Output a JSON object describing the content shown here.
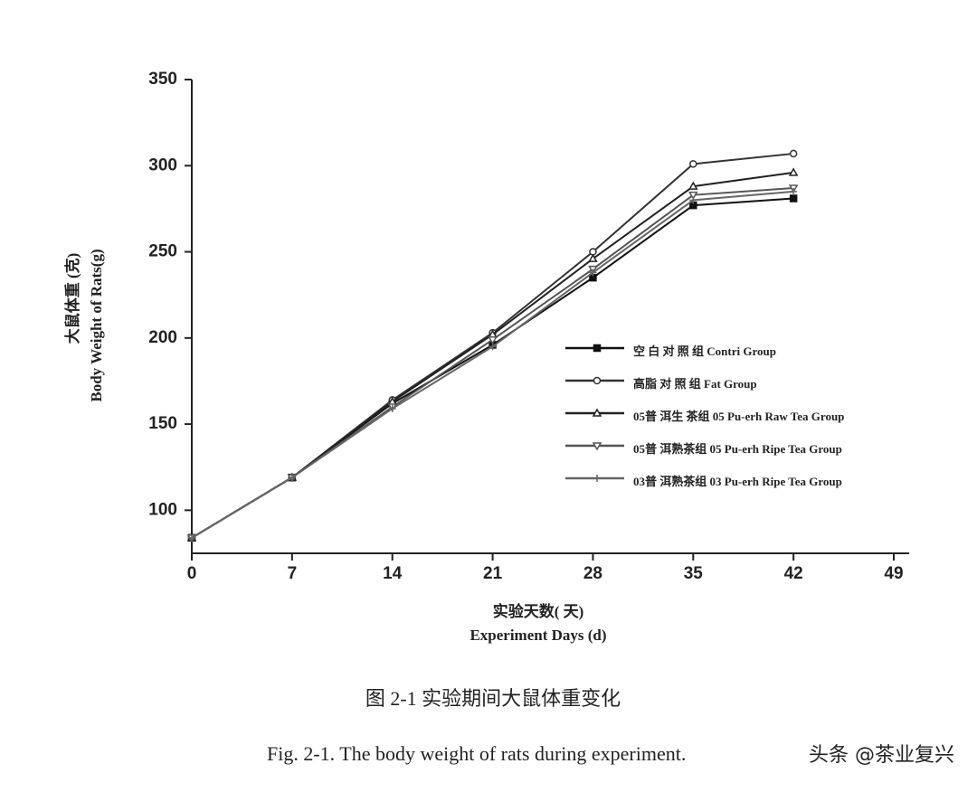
{
  "chart_data": {
    "type": "line",
    "x_label_cn": "实验天数( 天)",
    "x_label": "Experiment Days (d)",
    "y_label_cn": "大鼠体重 (克)",
    "y_label": "Body Weight of Rats(g)",
    "caption_cn": "图 2-1  实验期间大鼠体重变化",
    "caption": "Fig. 2-1. The body weight of rats during experiment.",
    "watermark": "头条 @茶业复兴",
    "x": [
      0,
      7,
      14,
      21,
      28,
      35,
      42
    ],
    "xlim": [
      0,
      49
    ],
    "xticks": [
      0,
      7,
      14,
      21,
      28,
      35,
      42,
      49
    ],
    "ylim": [
      75,
      350
    ],
    "yticks": [
      100,
      150,
      200,
      250,
      300,
      350
    ],
    "series": [
      {
        "name": "空 白 对 照 组 Contri Group",
        "color": "#111111",
        "marker": "square",
        "values": [
          84,
          119,
          162,
          196,
          235,
          277,
          281
        ]
      },
      {
        "name": "高脂 对 照 组 Fat  Group",
        "color": "#333333",
        "marker": "circle",
        "values": [
          84,
          119,
          164,
          203,
          250,
          301,
          307
        ]
      },
      {
        "name": "05普  洱生 茶组 05 Pu-erh Raw Tea Group",
        "color": "#222222",
        "marker": "triangle",
        "values": [
          84,
          119,
          163,
          202,
          246,
          288,
          296
        ]
      },
      {
        "name": "05普  洱熟茶组 05 Pu-erh Ripe Tea Group",
        "color": "#555555",
        "marker": "triangle-down",
        "values": [
          84,
          119,
          160,
          199,
          240,
          283,
          287
        ]
      },
      {
        "name": "03普  洱熟茶组 03 Pu-erh Ripe Tea Group",
        "color": "#666666",
        "marker": "plus",
        "values": [
          84,
          119,
          159,
          195,
          238,
          280,
          285
        ]
      }
    ]
  }
}
